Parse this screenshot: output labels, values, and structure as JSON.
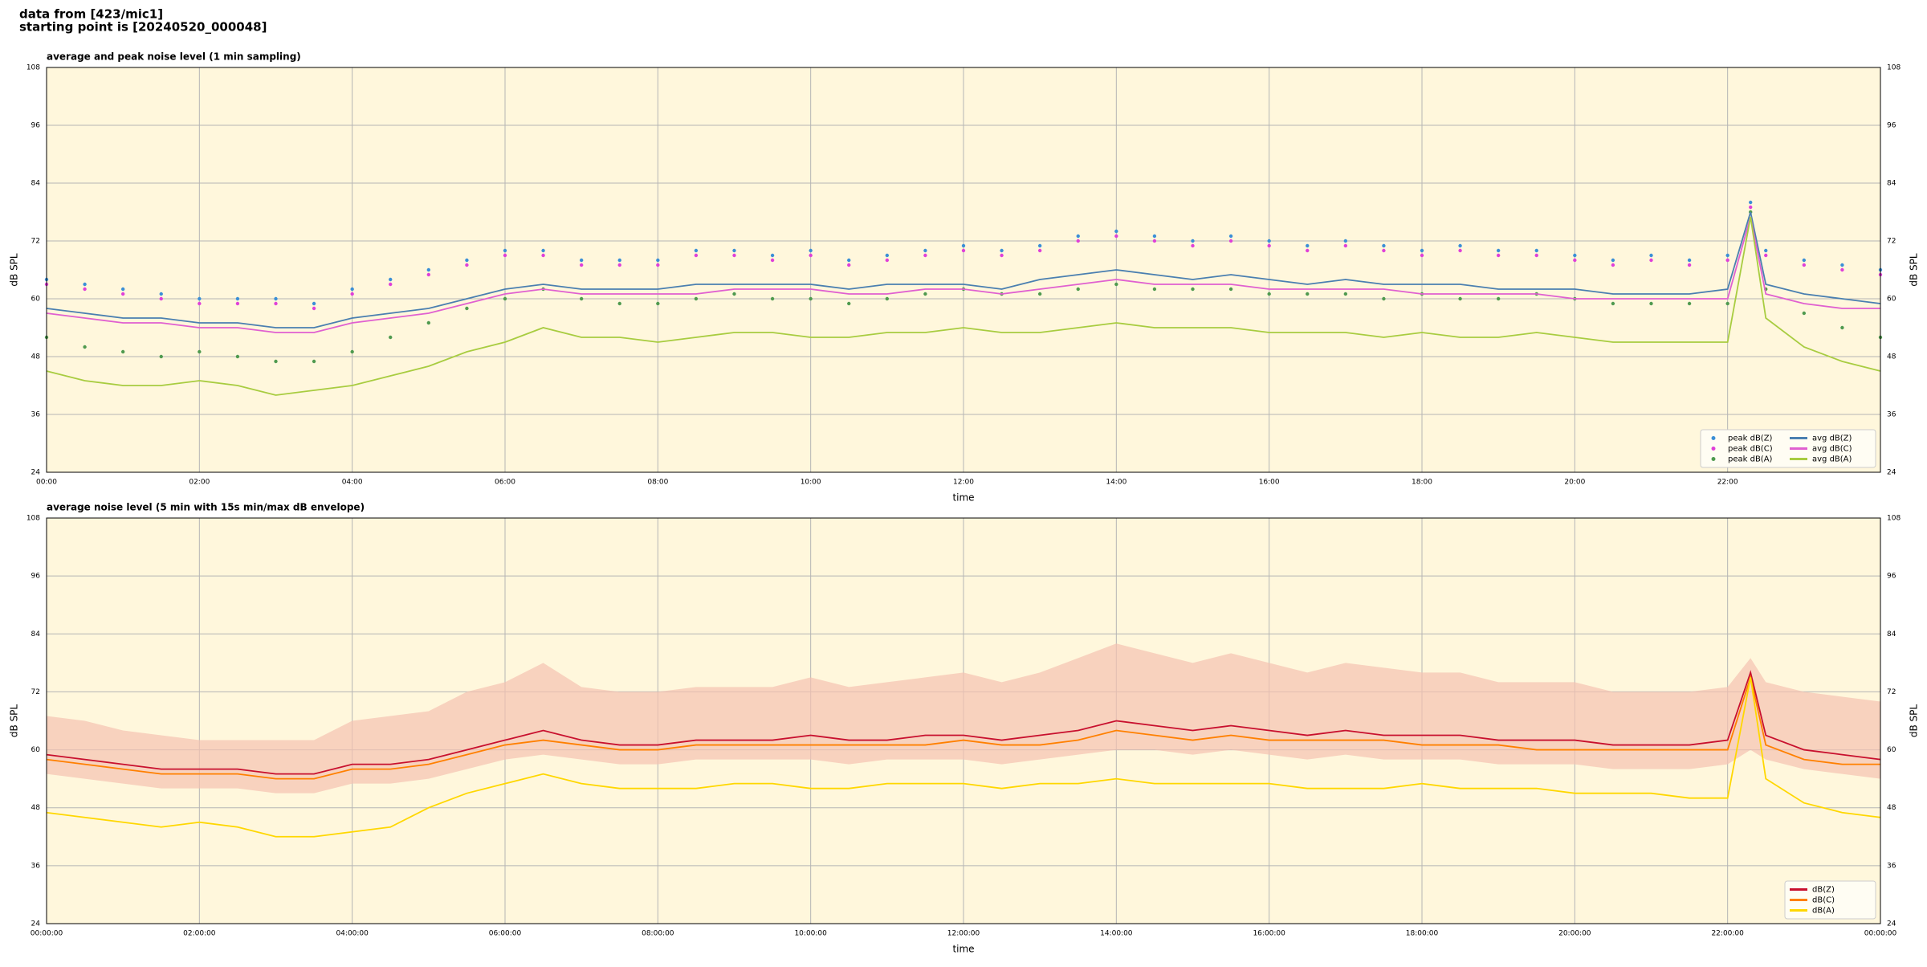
{
  "header": {
    "line1": "data from [423/mic1]",
    "line2": "starting point is [20240520_000048]"
  },
  "chart_data": [
    {
      "type": "line",
      "title": "average and peak noise level (1 min sampling)",
      "xlabel": "time",
      "ylabel": "dB SPL",
      "x": [
        0,
        0.5,
        1,
        1.5,
        2,
        2.5,
        3,
        3.5,
        4,
        4.5,
        5,
        5.5,
        6,
        6.5,
        7,
        7.5,
        8,
        8.5,
        9,
        9.5,
        10,
        10.5,
        11,
        11.5,
        12,
        12.5,
        13,
        13.5,
        14,
        14.5,
        15,
        15.5,
        16,
        16.5,
        17,
        17.5,
        18,
        18.5,
        19,
        19.5,
        20,
        20.5,
        21,
        21.5,
        22,
        22.3,
        22.5,
        23,
        23.5,
        24
      ],
      "xlim": [
        0,
        24
      ],
      "xticks": [
        {
          "value": 0,
          "label": "00:00"
        },
        {
          "value": 2,
          "label": "02:00"
        },
        {
          "value": 4,
          "label": "04:00"
        },
        {
          "value": 6,
          "label": "06:00"
        },
        {
          "value": 8,
          "label": "08:00"
        },
        {
          "value": 10,
          "label": "10:00"
        },
        {
          "value": 12,
          "label": "12:00"
        },
        {
          "value": 14,
          "label": "14:00"
        },
        {
          "value": 16,
          "label": "16:00"
        },
        {
          "value": 18,
          "label": "18:00"
        },
        {
          "value": 20,
          "label": "20:00"
        },
        {
          "value": 22,
          "label": "22:00"
        }
      ],
      "ylim": [
        24,
        108
      ],
      "yticks": [
        24,
        36,
        48,
        60,
        72,
        84,
        96,
        108
      ],
      "grid": true,
      "legend": "lower right",
      "legend_columns": 2,
      "series": [
        {
          "name": "peak dB(Z)",
          "style": "marker",
          "color": "#3b8fd6",
          "values": [
            64,
            63,
            62,
            61,
            60,
            60,
            60,
            59,
            62,
            64,
            66,
            68,
            70,
            70,
            68,
            68,
            68,
            70,
            70,
            69,
            70,
            68,
            69,
            70,
            71,
            70,
            71,
            73,
            74,
            73,
            72,
            73,
            72,
            71,
            72,
            71,
            70,
            71,
            70,
            70,
            69,
            68,
            69,
            68,
            69,
            80,
            70,
            68,
            67,
            66
          ]
        },
        {
          "name": "peak dB(C)",
          "style": "marker",
          "color": "#e040d8",
          "values": [
            63,
            62,
            61,
            60,
            59,
            59,
            59,
            58,
            61,
            63,
            65,
            67,
            69,
            69,
            67,
            67,
            67,
            69,
            69,
            68,
            69,
            67,
            68,
            69,
            70,
            69,
            70,
            72,
            73,
            72,
            71,
            72,
            71,
            70,
            71,
            70,
            69,
            70,
            69,
            69,
            68,
            67,
            68,
            67,
            68,
            79,
            69,
            67,
            66,
            65
          ]
        },
        {
          "name": "peak dB(A)",
          "style": "marker",
          "color": "#4f9a4f",
          "values": [
            52,
            50,
            49,
            48,
            49,
            48,
            47,
            47,
            49,
            52,
            55,
            58,
            60,
            62,
            60,
            59,
            59,
            60,
            61,
            60,
            60,
            59,
            60,
            61,
            62,
            61,
            61,
            62,
            63,
            62,
            62,
            62,
            61,
            61,
            61,
            60,
            61,
            60,
            60,
            61,
            60,
            59,
            59,
            59,
            59,
            78,
            62,
            57,
            54,
            52
          ]
        },
        {
          "name": "avg dB(Z)",
          "style": "line",
          "color": "#4a7fb0",
          "values": [
            58,
            57,
            56,
            56,
            55,
            55,
            54,
            54,
            56,
            57,
            58,
            60,
            62,
            63,
            62,
            62,
            62,
            63,
            63,
            63,
            63,
            62,
            63,
            63,
            63,
            62,
            64,
            65,
            66,
            65,
            64,
            65,
            64,
            63,
            64,
            63,
            63,
            63,
            62,
            62,
            62,
            61,
            61,
            61,
            62,
            78,
            63,
            61,
            60,
            59
          ]
        },
        {
          "name": "avg dB(C)",
          "style": "line",
          "color": "#e060d0",
          "values": [
            57,
            56,
            55,
            55,
            54,
            54,
            53,
            53,
            55,
            56,
            57,
            59,
            61,
            62,
            61,
            61,
            61,
            61,
            62,
            62,
            62,
            61,
            61,
            62,
            62,
            61,
            62,
            63,
            64,
            63,
            63,
            63,
            62,
            62,
            62,
            62,
            61,
            61,
            61,
            61,
            60,
            60,
            60,
            60,
            60,
            77,
            61,
            59,
            58,
            58
          ]
        },
        {
          "name": "avg dB(A)",
          "style": "line",
          "color": "#a8cc40",
          "values": [
            45,
            43,
            42,
            42,
            43,
            42,
            40,
            41,
            42,
            44,
            46,
            49,
            51,
            54,
            52,
            52,
            51,
            52,
            53,
            53,
            52,
            52,
            53,
            53,
            54,
            53,
            53,
            54,
            55,
            54,
            54,
            54,
            53,
            53,
            53,
            52,
            53,
            52,
            52,
            53,
            52,
            51,
            51,
            51,
            51,
            77,
            56,
            50,
            47,
            45
          ]
        }
      ]
    },
    {
      "type": "line",
      "title": "average noise level (5 min with 15s min/max dB envelope)",
      "xlabel": "time",
      "ylabel": "dB SPL",
      "x": [
        0,
        0.5,
        1,
        1.5,
        2,
        2.5,
        3,
        3.5,
        4,
        4.5,
        5,
        5.5,
        6,
        6.5,
        7,
        7.5,
        8,
        8.5,
        9,
        9.5,
        10,
        10.5,
        11,
        11.5,
        12,
        12.5,
        13,
        13.5,
        14,
        14.5,
        15,
        15.5,
        16,
        16.5,
        17,
        17.5,
        18,
        18.5,
        19,
        19.5,
        20,
        20.5,
        21,
        21.5,
        22,
        22.3,
        22.5,
        23,
        23.5,
        24
      ],
      "xlim": [
        0,
        24
      ],
      "xticks": [
        {
          "value": 0,
          "label": "00:00:00"
        },
        {
          "value": 2,
          "label": "02:00:00"
        },
        {
          "value": 4,
          "label": "04:00:00"
        },
        {
          "value": 6,
          "label": "06:00:00"
        },
        {
          "value": 8,
          "label": "08:00:00"
        },
        {
          "value": 10,
          "label": "10:00:00"
        },
        {
          "value": 12,
          "label": "12:00:00"
        },
        {
          "value": 14,
          "label": "14:00:00"
        },
        {
          "value": 16,
          "label": "16:00:00"
        },
        {
          "value": 18,
          "label": "18:00:00"
        },
        {
          "value": 20,
          "label": "20:00:00"
        },
        {
          "value": 22,
          "label": "22:00:00"
        },
        {
          "value": 24,
          "label": "00:00:00"
        }
      ],
      "ylim": [
        24,
        108
      ],
      "yticks": [
        24,
        36,
        48,
        60,
        72,
        84,
        96,
        108
      ],
      "grid": true,
      "legend": "lower right",
      "legend_columns": 1,
      "envelope": {
        "color": "#f5c2b0",
        "lower": [
          55,
          54,
          53,
          52,
          52,
          52,
          51,
          51,
          53,
          53,
          54,
          56,
          58,
          59,
          58,
          57,
          57,
          58,
          58,
          58,
          58,
          57,
          58,
          58,
          58,
          57,
          58,
          59,
          60,
          60,
          59,
          60,
          59,
          58,
          59,
          58,
          58,
          58,
          57,
          57,
          57,
          56,
          56,
          56,
          57,
          60,
          58,
          56,
          55,
          54
        ],
        "upper": [
          67,
          66,
          64,
          63,
          62,
          62,
          62,
          62,
          66,
          67,
          68,
          72,
          74,
          78,
          73,
          72,
          72,
          73,
          73,
          73,
          75,
          73,
          74,
          75,
          76,
          74,
          76,
          79,
          82,
          80,
          78,
          80,
          78,
          76,
          78,
          77,
          76,
          76,
          74,
          74,
          74,
          72,
          72,
          72,
          73,
          79,
          74,
          72,
          71,
          70
        ]
      },
      "series": [
        {
          "name": "dB(Z)",
          "style": "line",
          "color": "#c8102e",
          "values": [
            59,
            58,
            57,
            56,
            56,
            56,
            55,
            55,
            57,
            57,
            58,
            60,
            62,
            64,
            62,
            61,
            61,
            62,
            62,
            62,
            63,
            62,
            62,
            63,
            63,
            62,
            63,
            64,
            66,
            65,
            64,
            65,
            64,
            63,
            64,
            63,
            63,
            63,
            62,
            62,
            62,
            61,
            61,
            61,
            62,
            76,
            63,
            60,
            59,
            58
          ]
        },
        {
          "name": "dB(C)",
          "style": "line",
          "color": "#ff8000",
          "values": [
            58,
            57,
            56,
            55,
            55,
            55,
            54,
            54,
            56,
            56,
            57,
            59,
            61,
            62,
            61,
            60,
            60,
            61,
            61,
            61,
            61,
            61,
            61,
            61,
            62,
            61,
            61,
            62,
            64,
            63,
            62,
            63,
            62,
            62,
            62,
            62,
            61,
            61,
            61,
            60,
            60,
            60,
            60,
            60,
            60,
            75,
            61,
            58,
            57,
            57
          ]
        },
        {
          "name": "dB(A)",
          "style": "line",
          "color": "#ffd700",
          "values": [
            47,
            46,
            45,
            44,
            45,
            44,
            42,
            42,
            43,
            44,
            48,
            51,
            53,
            55,
            53,
            52,
            52,
            52,
            53,
            53,
            52,
            52,
            53,
            53,
            53,
            52,
            53,
            53,
            54,
            53,
            53,
            53,
            53,
            52,
            52,
            52,
            53,
            52,
            52,
            52,
            51,
            51,
            51,
            50,
            50,
            75,
            54,
            49,
            47,
            46
          ]
        }
      ]
    }
  ]
}
